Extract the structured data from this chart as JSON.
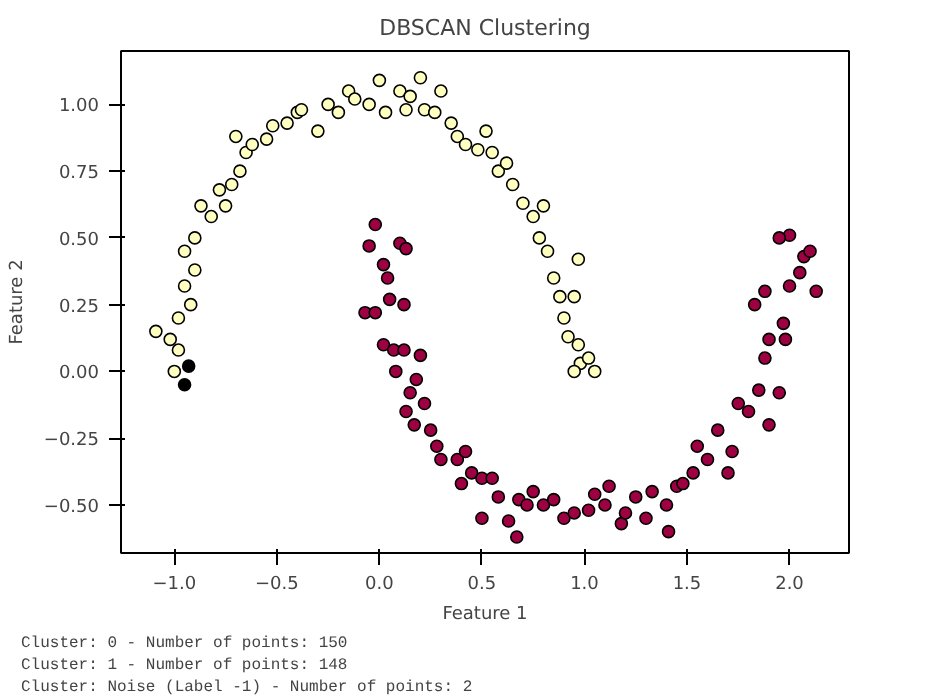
{
  "chart_data": {
    "type": "scatter",
    "title": "DBSCAN Clustering",
    "xlabel": "Feature 1",
    "ylabel": "Feature 2",
    "xlim": [
      -1.26,
      2.29
    ],
    "ylim": [
      -0.68,
      1.2
    ],
    "xticks": [
      {
        "value": -1,
        "label": "−1.0"
      },
      {
        "value": -0.5,
        "label": "−0.5"
      },
      {
        "value": 0,
        "label": "0.0"
      },
      {
        "value": 0.5,
        "label": "0.5"
      },
      {
        "value": 1,
        "label": "1.0"
      },
      {
        "value": 1.5,
        "label": "1.5"
      },
      {
        "value": 2,
        "label": "2.0"
      }
    ],
    "yticks": [
      {
        "value": -0.5,
        "label": "−0.50"
      },
      {
        "value": -0.25,
        "label": "−0.25"
      },
      {
        "value": 0,
        "label": "0.00"
      },
      {
        "value": 0.25,
        "label": "0.25"
      },
      {
        "value": 0.5,
        "label": "0.50"
      },
      {
        "value": 0.75,
        "label": "0.75"
      },
      {
        "value": 1,
        "label": "1.00"
      }
    ],
    "grid": false,
    "marker": "circle",
    "annotations": [
      "Cluster: 0 - Number of points: 150",
      "Cluster: 1 - Number of points: 148",
      "Cluster: Noise (Label -1) - Number of points: 2"
    ],
    "series": [
      {
        "color": "#ffffbf",
        "x": [
          -1.09,
          -1.02,
          -0.98,
          -0.98,
          -1.0,
          -0.95,
          -0.92,
          -0.9,
          -0.95,
          -0.9,
          -0.87,
          -0.82,
          -0.78,
          -0.72,
          -0.75,
          -0.68,
          -0.65,
          -0.7,
          -0.62,
          -0.55,
          -0.52,
          -0.45,
          -0.4,
          -0.38,
          -0.3,
          -0.25,
          -0.2,
          -0.15,
          -0.12,
          -0.05,
          0.0,
          0.03,
          0.1,
          0.13,
          0.15,
          0.2,
          0.22,
          0.27,
          0.3,
          0.35,
          0.38,
          0.42,
          0.48,
          0.52,
          0.55,
          0.58,
          0.62,
          0.65,
          0.7,
          0.75,
          0.78,
          0.82,
          0.85,
          0.88,
          0.9,
          0.95,
          0.92,
          0.97,
          0.98,
          1.02,
          0.95,
          1.05,
          0.97,
          0.8
        ],
        "values": [
          0.15,
          0.12,
          0.08,
          0.2,
          0.0,
          0.32,
          0.25,
          0.38,
          0.45,
          0.5,
          0.62,
          0.58,
          0.68,
          0.7,
          0.62,
          0.75,
          0.82,
          0.88,
          0.85,
          0.87,
          0.92,
          0.93,
          0.97,
          0.98,
          0.9,
          1.0,
          0.97,
          1.05,
          1.02,
          1.0,
          1.09,
          0.97,
          1.05,
          0.98,
          1.03,
          1.1,
          0.98,
          0.97,
          1.05,
          0.93,
          0.88,
          0.85,
          0.83,
          0.9,
          0.82,
          0.75,
          0.78,
          0.7,
          0.63,
          0.58,
          0.5,
          0.45,
          0.35,
          0.28,
          0.2,
          0.28,
          0.13,
          0.1,
          0.03,
          0.05,
          0.0,
          0.0,
          0.42,
          0.62
        ]
      },
      {
        "color": "#9e0142",
        "x": [
          -0.02,
          -0.05,
          0.1,
          0.13,
          0.02,
          0.04,
          -0.07,
          -0.02,
          0.05,
          0.12,
          0.02,
          0.07,
          0.12,
          0.2,
          0.08,
          0.18,
          0.15,
          0.13,
          0.22,
          0.17,
          0.25,
          0.28,
          0.3,
          0.38,
          0.42,
          0.45,
          0.4,
          0.5,
          0.55,
          0.5,
          0.58,
          0.63,
          0.68,
          0.72,
          0.75,
          0.8,
          0.67,
          0.85,
          0.9,
          0.95,
          1.02,
          1.05,
          1.1,
          1.12,
          1.18,
          1.2,
          1.25,
          1.3,
          1.33,
          1.4,
          1.41,
          1.45,
          1.48,
          1.53,
          1.55,
          1.6,
          1.65,
          1.7,
          1.72,
          1.75,
          1.8,
          1.85,
          1.9,
          1.88,
          1.9,
          1.95,
          1.97,
          1.83,
          1.88,
          2.0,
          2.05,
          2.13,
          1.98,
          2.07,
          2.0,
          1.95,
          2.1
        ],
        "values": [
          0.55,
          0.47,
          0.48,
          0.46,
          0.4,
          0.35,
          0.22,
          0.22,
          0.27,
          0.25,
          0.1,
          0.08,
          0.08,
          0.06,
          0.0,
          -0.03,
          -0.08,
          -0.15,
          -0.12,
          -0.2,
          -0.22,
          -0.28,
          -0.33,
          -0.33,
          -0.3,
          -0.38,
          -0.42,
          -0.4,
          -0.4,
          -0.55,
          -0.47,
          -0.56,
          -0.48,
          -0.5,
          -0.45,
          -0.5,
          -0.62,
          -0.48,
          -0.55,
          -0.53,
          -0.52,
          -0.46,
          -0.5,
          -0.43,
          -0.57,
          -0.53,
          -0.47,
          -0.55,
          -0.45,
          -0.5,
          -0.6,
          -0.43,
          -0.42,
          -0.38,
          -0.28,
          -0.33,
          -0.22,
          -0.38,
          -0.3,
          -0.12,
          -0.15,
          -0.07,
          -0.2,
          0.05,
          0.12,
          -0.08,
          0.18,
          0.25,
          0.3,
          0.32,
          0.37,
          0.3,
          0.12,
          0.43,
          0.51,
          0.5,
          0.45
        ]
      },
      {
        "color": "#000000",
        "x": [
          -0.93,
          -0.95
        ],
        "values": [
          0.02,
          -0.05
        ]
      }
    ]
  }
}
